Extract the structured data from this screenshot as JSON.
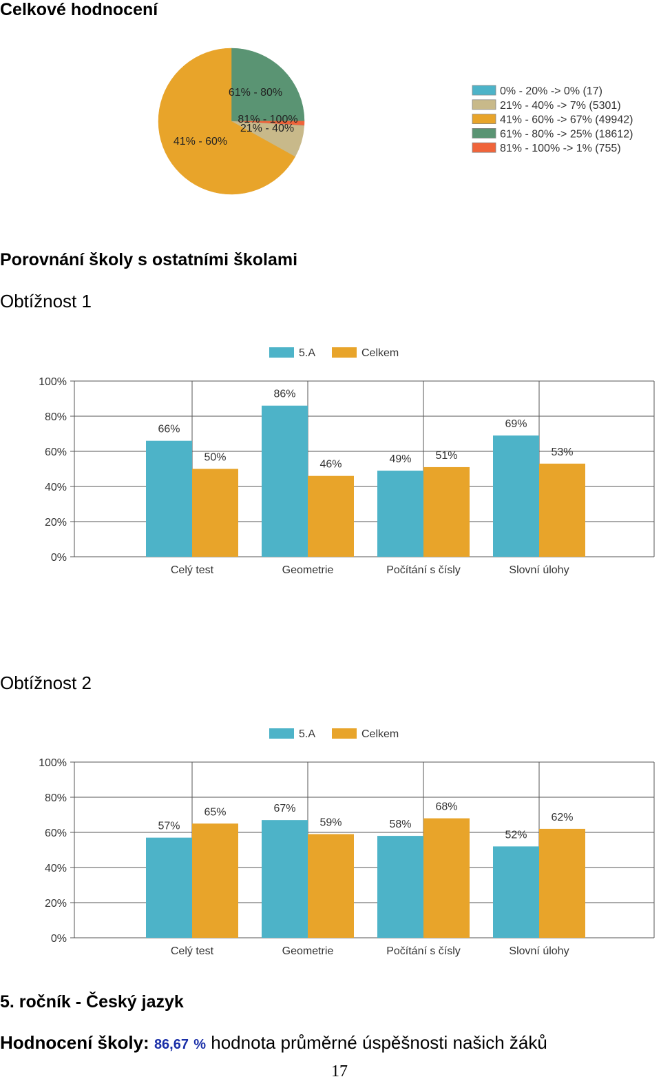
{
  "titles": {
    "overall": "Celkové hodnocení",
    "comparison": "Porovnání školy s ostatními školami",
    "difficulty1": "Obtížnost 1",
    "difficulty2": "Obtížnost 2",
    "subject": "5. ročník - Český jazyk"
  },
  "school_rating": {
    "label": "Hodnocení školy:",
    "value": "86,67",
    "unit": "%",
    "desc1": "hodnota",
    "desc2": "průměrné úspěšnosti našich žáků"
  },
  "page_number": "17",
  "colors": {
    "class": "#4db3c8",
    "total": "#e8a42a",
    "s0_20": "#4db3c8",
    "s21_40": "#c8b98a",
    "s41_60": "#e8a42a",
    "s61_80": "#5a9473",
    "s81_100": "#f0643a"
  },
  "chart_data": [
    {
      "type": "pie",
      "slices": [
        {
          "label": "0% - 20%",
          "legend": "0% - 20% -> 0% (17)",
          "percent": 0,
          "count": 17,
          "color": "#4db3c8"
        },
        {
          "label": "21% - 40%",
          "legend": "21% - 40% -> 7% (5301)",
          "percent": 7,
          "count": 5301,
          "color": "#c8b98a"
        },
        {
          "label": "41% - 60%",
          "legend": "41% - 60% -> 67% (49942)",
          "percent": 67,
          "count": 49942,
          "color": "#e8a42a"
        },
        {
          "label": "61% - 80%",
          "legend": "61% - 80% -> 25% (18612)",
          "percent": 25,
          "count": 18612,
          "color": "#5a9473"
        },
        {
          "label": "81% - 100%",
          "legend": "81% - 100% -> 1% (755)",
          "percent": 1,
          "count": 755,
          "color": "#f0643a"
        }
      ],
      "legend_position": "right"
    },
    {
      "type": "bar",
      "categories": [
        "Celý test",
        "Geometrie",
        "Počítání s čísly",
        "Slovní úlohy"
      ],
      "series": [
        {
          "name": "5.A",
          "values": [
            66,
            86,
            49,
            69
          ],
          "labels": [
            "66%",
            "86%",
            "49%",
            "69%"
          ]
        },
        {
          "name": "Celkem",
          "values": [
            50,
            46,
            51,
            53
          ],
          "labels": [
            "50%",
            "46%",
            "51%",
            "53%"
          ]
        }
      ],
      "yticks": [
        "0%",
        "20%",
        "40%",
        "60%",
        "80%",
        "100%"
      ],
      "ylim": [
        0,
        100
      ],
      "grid": true,
      "legend_position": "top"
    },
    {
      "type": "bar",
      "categories": [
        "Celý test",
        "Geometrie",
        "Počítání s čísly",
        "Slovní úlohy"
      ],
      "series": [
        {
          "name": "5.A",
          "values": [
            57,
            67,
            58,
            52
          ],
          "labels": [
            "57%",
            "67%",
            "58%",
            "52%"
          ]
        },
        {
          "name": "Celkem",
          "values": [
            65,
            59,
            68,
            62
          ],
          "labels": [
            "65%",
            "59%",
            "68%",
            "62%"
          ]
        }
      ],
      "yticks": [
        "0%",
        "20%",
        "40%",
        "60%",
        "80%",
        "100%"
      ],
      "ylim": [
        0,
        100
      ],
      "grid": true,
      "legend_position": "top"
    }
  ]
}
